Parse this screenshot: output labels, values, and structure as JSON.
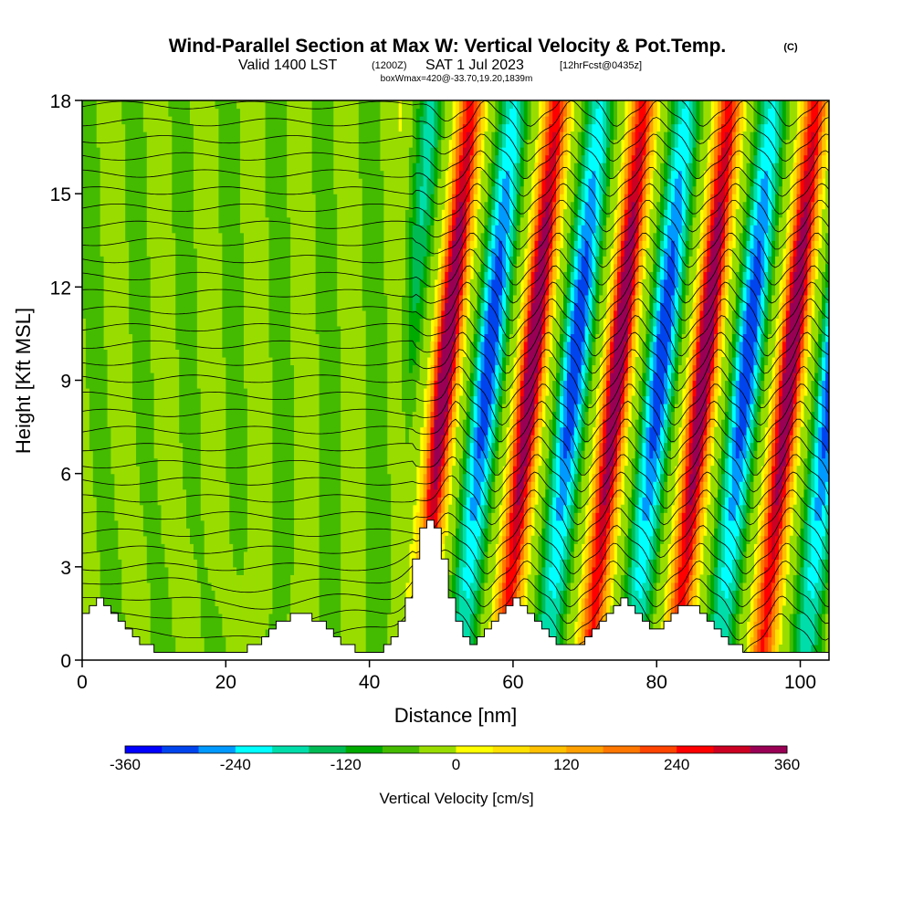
{
  "header": {
    "title": "Wind-Parallel Section at Max W: Vertical Velocity & Pot.Temp.",
    "copyright": "(C)",
    "valid_prefix": "Valid 1400 LST",
    "valid_utc": "(1200Z)",
    "valid_date": "SAT 1 Jul 2023",
    "forecast": "[12hrFcst@0435z]",
    "box_info": "boxWmax=420@-33.70,19.20,1839m"
  },
  "chart_data": {
    "type": "heatmap",
    "title": "Wind-Parallel Section at Max W: Vertical Velocity & Pot.Temp.",
    "xlabel": "Distance [nm]",
    "ylabel": "Height [Kft MSL]",
    "xlim": [
      0,
      104
    ],
    "ylim": [
      0,
      18
    ],
    "x_ticks": [
      0,
      20,
      40,
      60,
      80,
      100
    ],
    "y_ticks": [
      0,
      3,
      6,
      9,
      12,
      15,
      18
    ],
    "field": "Vertical Velocity",
    "contour_field": "Potential Temperature",
    "max_vertical_velocity_cm_s": 420,
    "max_location": {
      "lat": -33.7,
      "lon": 19.2,
      "height_m": 1839
    },
    "wave_region_start_nm": 48,
    "wave_updraft_cores_nm": [
      50,
      62,
      74,
      86,
      98
    ],
    "terrain_peaks_kft": [
      {
        "x": 2,
        "h": 1.9
      },
      {
        "x": 30,
        "h": 1.6
      },
      {
        "x": 48,
        "h": 4.6
      },
      {
        "x": 60,
        "h": 1.9
      },
      {
        "x": 75,
        "h": 1.9
      },
      {
        "x": 84,
        "h": 1.8
      }
    ],
    "colorbar": {
      "label": "Vertical Velocity [cm/s]",
      "min": -360,
      "max": 360,
      "step": 40,
      "tick_labels": [
        "-360",
        "-240",
        "-120",
        "0",
        "120",
        "240",
        "360"
      ],
      "colors": [
        "#0000ff",
        "#0044ee",
        "#0099ff",
        "#00ffff",
        "#00ddaa",
        "#00bb55",
        "#00aa00",
        "#44bb00",
        "#99dd00",
        "#ffff00",
        "#ffe000",
        "#ffc000",
        "#ffa000",
        "#ff7700",
        "#ff4400",
        "#ff0000",
        "#cc0022",
        "#990055"
      ]
    }
  }
}
